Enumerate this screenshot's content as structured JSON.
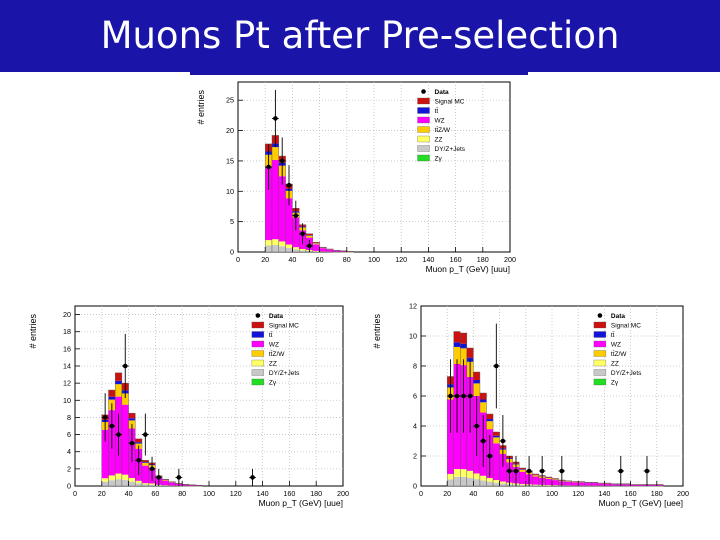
{
  "header": {
    "title": "Muons Pt after Pre-selection"
  },
  "colors": {
    "signal": "#cc1111",
    "ttbar": "#1414d8",
    "wz": "#ff00ff",
    "ttzw": "#ffcc00",
    "zz": "#ffff66",
    "dyjets": "#c8c8c8",
    "zgamma": "#22dd22",
    "data": "#000000",
    "header_bg": "#1a14a8"
  },
  "chart_data": [
    {
      "type": "bar",
      "channel": "uuu",
      "xlabel": "Muon p_T (GeV) [uuu]",
      "ylabel": "# entries",
      "xlim": [
        0,
        200
      ],
      "ylim": [
        0,
        28
      ],
      "xticks": [
        0,
        20,
        40,
        60,
        80,
        100,
        120,
        140,
        160,
        180,
        200
      ],
      "yticks": [
        0,
        5,
        10,
        15,
        20,
        25
      ],
      "grid": true,
      "legend_position": "top-right",
      "legend": [
        "Data",
        "Signal MC",
        "tt̄",
        "WZ",
        "tt̄Z/W",
        "ZZ",
        "DY/Z+Jets",
        "Zγ"
      ],
      "bin_width": 5,
      "bin_edges_start": [
        20,
        25,
        30,
        35,
        40,
        45,
        50,
        55,
        60,
        65,
        70,
        75,
        80
      ],
      "mc_total": [
        17.8,
        19.2,
        15.8,
        11.2,
        7.2,
        4.5,
        3.0,
        1.6,
        0.8,
        0.5,
        0.3,
        0.2,
        0.1
      ],
      "data": {
        "x": [
          22.5,
          27.5,
          32.5,
          37.5,
          42.5,
          47.5,
          52.5
        ],
        "y": [
          14,
          22,
          15,
          11,
          6,
          3,
          1
        ]
      }
    },
    {
      "type": "bar",
      "channel": "uue",
      "xlabel": "Muon p_T (GeV) [uue]",
      "ylabel": "# entries",
      "xlim": [
        0,
        200
      ],
      "ylim": [
        0,
        21
      ],
      "xticks": [
        0,
        20,
        40,
        60,
        80,
        100,
        120,
        140,
        160,
        180,
        200
      ],
      "yticks": [
        0,
        2,
        4,
        6,
        8,
        10,
        12,
        14,
        16,
        18,
        20
      ],
      "grid": true,
      "legend_position": "top-right",
      "legend": [
        "Data",
        "Signal MC",
        "tt̄",
        "WZ",
        "tt̄Z/W",
        "ZZ",
        "DY/Z+Jets",
        "Zγ"
      ],
      "bin_width": 5,
      "bin_edges_start": [
        20,
        25,
        30,
        35,
        40,
        45,
        50,
        55,
        60,
        65,
        70,
        75,
        80,
        85,
        90
      ],
      "mc_total": [
        8.3,
        11.2,
        13.2,
        12.0,
        8.5,
        5.5,
        3.0,
        2.7,
        1.2,
        0.8,
        0.5,
        0.3,
        0.2,
        0.15,
        0.1
      ],
      "data": {
        "x": [
          22.5,
          27.5,
          32.5,
          37.5,
          42.5,
          47.5,
          52.5,
          57.5,
          62.5,
          77.5,
          132.5
        ],
        "y": [
          8,
          7,
          6,
          14,
          5,
          3,
          6,
          2,
          1,
          1,
          1
        ]
      }
    },
    {
      "type": "bar",
      "channel": "uee",
      "xlabel": "Muon p_T (GeV) [uee]",
      "ylabel": "# entries",
      "xlim": [
        0,
        200
      ],
      "ylim": [
        0,
        12
      ],
      "xticks": [
        0,
        20,
        40,
        60,
        80,
        100,
        120,
        140,
        160,
        180,
        200
      ],
      "yticks": [
        0,
        2,
        4,
        6,
        8,
        10,
        12
      ],
      "grid": true,
      "legend_position": "top-right",
      "legend": [
        "Data",
        "Signal MC",
        "tt̄",
        "WZ",
        "tt̄Z/W",
        "ZZ",
        "DY/Z+Jets",
        "Zγ"
      ],
      "bin_width": 5,
      "bin_edges_start": [
        20,
        25,
        30,
        35,
        40,
        45,
        50,
        55,
        60,
        65,
        70,
        75,
        80,
        85,
        90,
        95,
        100,
        105,
        110,
        115,
        120,
        125,
        130,
        135,
        140,
        145,
        150,
        155,
        160,
        165,
        170,
        175,
        180
      ],
      "mc_total": [
        7.3,
        10.3,
        10.2,
        9.2,
        7.6,
        6.2,
        4.8,
        3.6,
        2.7,
        2.0,
        1.6,
        1.2,
        1.0,
        0.8,
        0.7,
        0.6,
        0.5,
        0.4,
        0.35,
        0.3,
        0.3,
        0.25,
        0.25,
        0.2,
        0.2,
        0.15,
        0.15,
        0.15,
        0.1,
        0.1,
        0.1,
        0.1,
        0.1
      ],
      "data": {
        "x": [
          22.5,
          27.5,
          32.5,
          37.5,
          42.5,
          47.5,
          52.5,
          57.5,
          62.5,
          67.5,
          72.5,
          82.5,
          92.5,
          107.5,
          152.5,
          172.5
        ],
        "y": [
          6,
          6,
          6,
          6,
          4,
          3,
          2,
          8,
          3,
          1,
          1,
          1,
          1,
          1,
          1,
          1
        ]
      }
    }
  ]
}
